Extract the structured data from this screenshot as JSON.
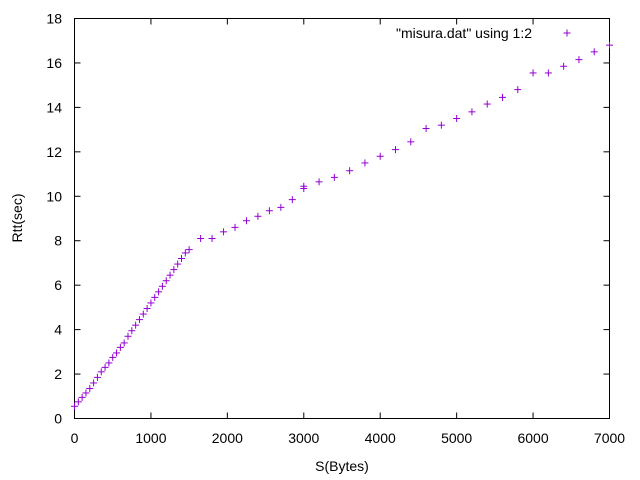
{
  "chart_data": {
    "type": "scatter",
    "title": "",
    "xlabel": "S(Bytes)",
    "ylabel": "Rtt(sec)",
    "xlim": [
      0,
      7000
    ],
    "ylim": [
      0,
      18
    ],
    "xticks": [
      0,
      1000,
      2000,
      3000,
      4000,
      5000,
      6000,
      7000
    ],
    "yticks": [
      0,
      2,
      4,
      6,
      8,
      10,
      12,
      14,
      16,
      18
    ],
    "grid": false,
    "legend_position": "top-right",
    "marker": "+",
    "color": "#9400d3",
    "series": [
      {
        "name": "\"misura.dat\" using 1:2",
        "points": [
          [
            0,
            0.55
          ],
          [
            50,
            0.75
          ],
          [
            100,
            0.95
          ],
          [
            150,
            1.15
          ],
          [
            200,
            1.35
          ],
          [
            250,
            1.6
          ],
          [
            300,
            1.85
          ],
          [
            350,
            2.1
          ],
          [
            400,
            2.3
          ],
          [
            450,
            2.5
          ],
          [
            500,
            2.75
          ],
          [
            550,
            2.95
          ],
          [
            600,
            3.2
          ],
          [
            650,
            3.4
          ],
          [
            700,
            3.7
          ],
          [
            750,
            3.95
          ],
          [
            800,
            4.2
          ],
          [
            850,
            4.45
          ],
          [
            900,
            4.7
          ],
          [
            950,
            4.95
          ],
          [
            1000,
            5.2
          ],
          [
            1050,
            5.45
          ],
          [
            1100,
            5.7
          ],
          [
            1150,
            5.95
          ],
          [
            1200,
            6.2
          ],
          [
            1250,
            6.45
          ],
          [
            1300,
            6.7
          ],
          [
            1350,
            6.95
          ],
          [
            1400,
            7.2
          ],
          [
            1450,
            7.45
          ],
          [
            1500,
            7.6
          ],
          [
            1650,
            8.1
          ],
          [
            1800,
            8.1
          ],
          [
            1950,
            8.4
          ],
          [
            2100,
            8.6
          ],
          [
            2250,
            8.9
          ],
          [
            2400,
            9.1
          ],
          [
            2550,
            9.35
          ],
          [
            2700,
            9.5
          ],
          [
            2850,
            9.85
          ],
          [
            3000,
            10.35
          ],
          [
            3000,
            10.45
          ],
          [
            3200,
            10.65
          ],
          [
            3400,
            10.85
          ],
          [
            3600,
            11.15
          ],
          [
            3800,
            11.5
          ],
          [
            4000,
            11.8
          ],
          [
            4200,
            12.1
          ],
          [
            4400,
            12.45
          ],
          [
            4600,
            13.05
          ],
          [
            4800,
            13.2
          ],
          [
            5000,
            13.5
          ],
          [
            5200,
            13.8
          ],
          [
            5400,
            14.15
          ],
          [
            5600,
            14.45
          ],
          [
            5800,
            14.8
          ],
          [
            6000,
            15.55
          ],
          [
            6200,
            15.55
          ],
          [
            6400,
            15.85
          ],
          [
            6600,
            16.15
          ],
          [
            6800,
            16.5
          ],
          [
            7000,
            16.8
          ]
        ]
      }
    ]
  }
}
